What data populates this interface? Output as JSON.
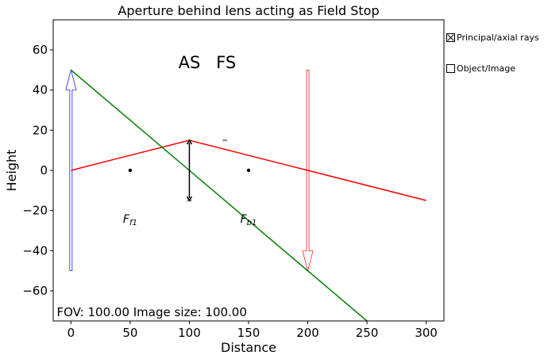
{
  "chart_data": {
    "type": "line",
    "title": "Aperture behind lens acting as Field Stop",
    "xlabel": "Distance",
    "ylabel": "Height",
    "xlim": [
      -15,
      315
    ],
    "ylim": [
      -75,
      75
    ],
    "x_ticks": [
      0,
      50,
      100,
      150,
      200,
      250,
      300
    ],
    "y_ticks": [
      -60,
      -40,
      -20,
      0,
      20,
      40,
      60
    ],
    "grid": false,
    "series": [
      {
        "color": "#ff0000",
        "x": [
          0,
          100,
          300
        ],
        "y": [
          0,
          15,
          -15
        ]
      },
      {
        "color": "#008000",
        "x": [
          0,
          250
        ],
        "y": [
          50,
          -75
        ]
      }
    ],
    "object_arrow": {
      "x": 0,
      "y_from": -50,
      "y_to": 50,
      "color": "#0000ff"
    },
    "image_arrow": {
      "x": 200,
      "y_from": 50,
      "y_to": -50,
      "color": "#ff0000"
    },
    "lens": {
      "x": 100,
      "y_from": -15,
      "y_to": 15,
      "color": "#000000"
    },
    "aperture_marks": [
      {
        "x": 130,
        "y": 15
      },
      {
        "x": 100,
        "y": -15
      }
    ],
    "focal_points": [
      {
        "x": 50,
        "y": 0,
        "label_main": "F",
        "label_sub": "f1",
        "label_y": -24
      },
      {
        "x": 150,
        "y": 0,
        "label_main": "F",
        "label_sub": "b1",
        "label_y": -24
      }
    ],
    "annotations": [
      {
        "text": "AS",
        "x": 100,
        "y": 54
      },
      {
        "text": "FS",
        "x": 131,
        "y": 54
      }
    ],
    "footer_text": "FOV: 100.00 Image size: 100.00"
  },
  "controls": {
    "principal_rays": {
      "label": "Principal/axial rays",
      "checked": true
    },
    "object_image": {
      "label": "Object/Image",
      "checked": false
    }
  }
}
